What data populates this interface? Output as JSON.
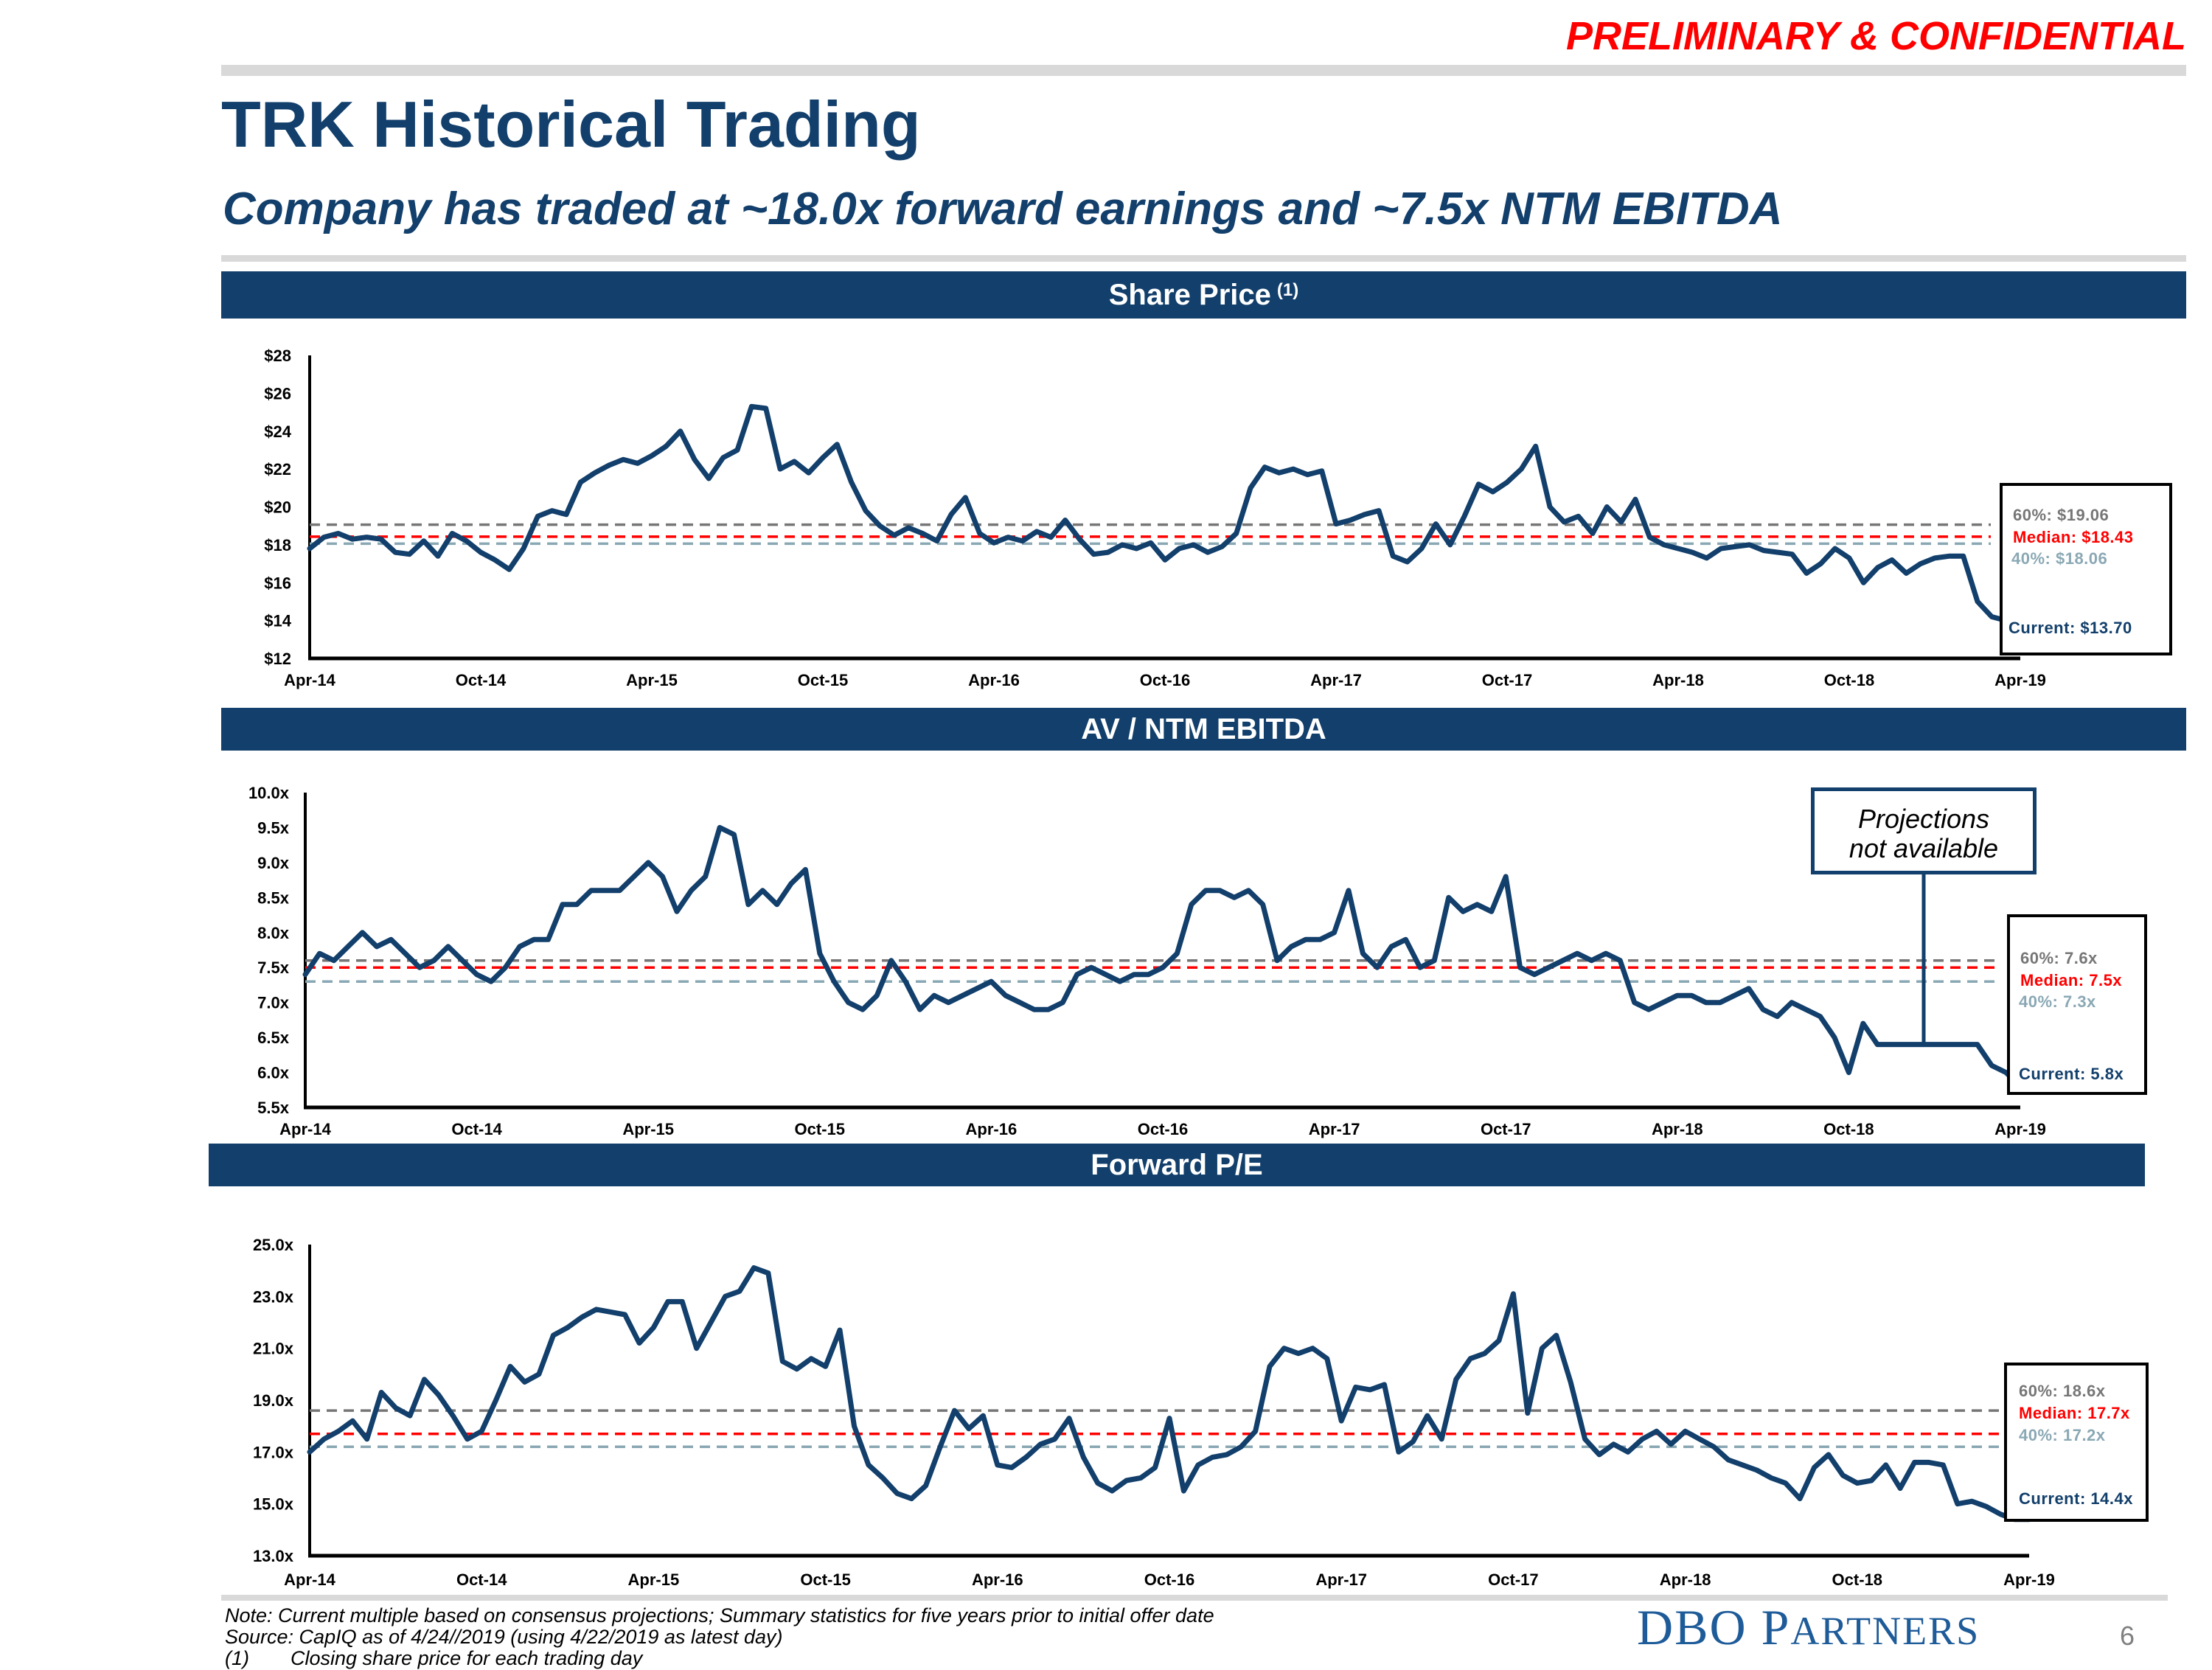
{
  "header": {
    "confidential": "PRELIMINARY & CONFIDENTIAL",
    "title": "TRK Historical Trading",
    "subtitle": "Company has traded at ~18.0x forward earnings and ~7.5x NTM EBITDA"
  },
  "sections": [
    {
      "label": "Share Price",
      "footnote_ref": "(1)"
    },
    {
      "label": "AV / NTM EBITDA"
    },
    {
      "label": "Forward P/E"
    }
  ],
  "colors": {
    "navy": "#123f6b",
    "red": "#ff0000",
    "grey60": "#767676",
    "grey40": "#8aa8b4"
  },
  "annotation": {
    "line1": "Projections",
    "line2": "not available"
  },
  "notes": {
    "note": "Note: Current multiple based on consensus projections; Summary statistics for five years prior to initial offer date",
    "source": "Source: CapIQ as of 4/24//2019 (using 4/22/2019 as latest day)",
    "footnote_num": "(1)",
    "footnote_text": "Closing share price for each trading day"
  },
  "footer": {
    "logo_main": "DBO",
    "logo_p": "P",
    "logo_rest": "ARTNERS",
    "page": "6"
  },
  "chart_data": [
    {
      "type": "line",
      "title": "Share Price (1)",
      "x_ticks": [
        "Apr-14",
        "Oct-14",
        "Apr-15",
        "Oct-15",
        "Apr-16",
        "Oct-16",
        "Apr-17",
        "Oct-17",
        "Apr-18",
        "Oct-18",
        "Apr-19"
      ],
      "y_ticks": [
        "$12",
        "$14",
        "$16",
        "$18",
        "$20",
        "$22",
        "$24",
        "$26",
        "$28"
      ],
      "ylim": [
        12,
        28
      ],
      "x_unit": "months since Apr-14",
      "xlim": [
        0,
        60
      ],
      "series": [
        {
          "name": "Share Price",
          "x": [
            0,
            0.5,
            1,
            1.5,
            2,
            2.5,
            3,
            3.5,
            4,
            4.5,
            5,
            5.5,
            6,
            6.5,
            7,
            7.5,
            8,
            8.5,
            9,
            9.5,
            10,
            10.5,
            11,
            11.5,
            12,
            12.5,
            13,
            13.5,
            14,
            14.5,
            15,
            15.5,
            16,
            16.5,
            17,
            17.5,
            18,
            18.5,
            19,
            19.5,
            20,
            20.5,
            21,
            21.5,
            22,
            22.5,
            23,
            23.5,
            24,
            24.5,
            25,
            25.5,
            26,
            26.5,
            27,
            27.5,
            28,
            28.5,
            29,
            29.5,
            30,
            30.5,
            31,
            31.5,
            32,
            32.5,
            33,
            33.5,
            34,
            34.5,
            35,
            35.5,
            36,
            36.5,
            37,
            37.5,
            38,
            38.5,
            39,
            39.5,
            40,
            40.5,
            41,
            41.5,
            42,
            42.5,
            43,
            43.5,
            44,
            44.5,
            45,
            45.5,
            46,
            46.5,
            47,
            47.5,
            48,
            48.5,
            49,
            49.5,
            50,
            50.5,
            51,
            51.5,
            52,
            52.5,
            53,
            53.5,
            54,
            54.5,
            55,
            55.5,
            56,
            56.5,
            57,
            57.5,
            58,
            58.5,
            59,
            59.5,
            60
          ],
          "values": [
            17.8,
            18.4,
            18.6,
            18.3,
            18.4,
            18.3,
            17.6,
            17.5,
            18.2,
            17.4,
            18.6,
            18.2,
            17.6,
            17.2,
            16.7,
            17.8,
            19.5,
            19.8,
            19.6,
            21.3,
            21.8,
            22.2,
            22.5,
            22.3,
            22.7,
            23.2,
            24.0,
            22.5,
            21.5,
            22.6,
            23.0,
            25.3,
            25.2,
            22.0,
            22.4,
            21.8,
            22.6,
            23.3,
            21.3,
            19.8,
            19.0,
            18.5,
            18.9,
            18.6,
            18.2,
            19.6,
            20.5,
            18.6,
            18.1,
            18.4,
            18.2,
            18.7,
            18.4,
            19.3,
            18.3,
            17.5,
            17.6,
            18.0,
            17.8,
            18.1,
            17.2,
            17.8,
            18.0,
            17.6,
            17.9,
            18.6,
            21.0,
            22.1,
            21.8,
            22.0,
            21.7,
            21.9,
            19.1,
            19.3,
            19.6,
            19.8,
            17.4,
            17.1,
            17.8,
            19.1,
            18.0,
            19.5,
            21.2,
            20.8,
            21.3,
            22.0,
            23.2,
            20.0,
            19.2,
            19.5,
            18.6,
            20.0,
            19.2,
            20.4,
            18.4,
            18.0,
            17.8,
            17.6,
            17.3,
            17.8,
            17.9,
            18.0,
            17.7,
            17.6,
            17.5,
            16.5,
            17.0,
            17.8,
            17.3,
            16.0,
            16.8,
            17.2,
            16.5,
            17.0,
            17.3,
            17.4,
            17.4,
            15.0,
            14.2,
            14.0,
            13.7
          ]
        }
      ],
      "reference_lines": [
        {
          "label": "60%",
          "value": 19.06,
          "text": "60%: $19.06"
        },
        {
          "label": "Median",
          "value": 18.43,
          "text": "Median: $18.43"
        },
        {
          "label": "40%",
          "value": 18.06,
          "text": "40%: $18.06"
        }
      ],
      "current": {
        "value": 13.7,
        "text": "Current: $13.70"
      }
    },
    {
      "type": "line",
      "title": "AV / NTM EBITDA",
      "x_ticks": [
        "Apr-14",
        "Oct-14",
        "Apr-15",
        "Oct-15",
        "Apr-16",
        "Oct-16",
        "Apr-17",
        "Oct-17",
        "Apr-18",
        "Oct-18",
        "Apr-19"
      ],
      "y_ticks": [
        "5.5x",
        "6.0x",
        "6.5x",
        "7.0x",
        "7.5x",
        "8.0x",
        "8.5x",
        "9.0x",
        "9.5x",
        "10.0x"
      ],
      "ylim": [
        5.5,
        10.0
      ],
      "x_unit": "months since Apr-14",
      "xlim": [
        0,
        60
      ],
      "series": [
        {
          "name": "AV / NTM EBITDA",
          "x": [
            0,
            0.5,
            1,
            1.5,
            2,
            2.5,
            3,
            3.5,
            4,
            4.5,
            5,
            5.5,
            6,
            6.5,
            7,
            7.5,
            8,
            8.5,
            9,
            9.5,
            10,
            10.5,
            11,
            11.5,
            12,
            12.5,
            13,
            13.5,
            14,
            14.5,
            15,
            15.5,
            16,
            16.5,
            17,
            17.5,
            18,
            18.5,
            19,
            19.5,
            20,
            20.5,
            21,
            21.5,
            22,
            22.5,
            23,
            23.5,
            24,
            24.5,
            25,
            25.5,
            26,
            26.5,
            27,
            27.5,
            28,
            28.5,
            29,
            29.5,
            30,
            30.5,
            31,
            31.5,
            32,
            32.5,
            33,
            33.5,
            34,
            34.5,
            35,
            35.5,
            36,
            36.5,
            37,
            37.5,
            38,
            38.5,
            39,
            39.5,
            40,
            40.5,
            41,
            41.5,
            42,
            42.5,
            43,
            43.5,
            44,
            44.5,
            45,
            45.5,
            46,
            46.5,
            47,
            47.5,
            48,
            48.5,
            49,
            49.5,
            50,
            50.5,
            51,
            51.5,
            52,
            52.5,
            53,
            53.5,
            54,
            54.5,
            55,
            55.5,
            56,
            56.5,
            57,
            57.5,
            58,
            58.5,
            59,
            59.5,
            60
          ],
          "values": [
            7.4,
            7.7,
            7.6,
            7.8,
            8.0,
            7.8,
            7.9,
            7.7,
            7.5,
            7.6,
            7.8,
            7.6,
            7.4,
            7.3,
            7.5,
            7.8,
            7.9,
            7.9,
            8.4,
            8.4,
            8.6,
            8.6,
            8.6,
            8.8,
            9.0,
            8.8,
            8.3,
            8.6,
            8.8,
            9.5,
            9.4,
            8.4,
            8.6,
            8.4,
            8.7,
            8.9,
            7.7,
            7.3,
            7.0,
            6.9,
            7.1,
            7.6,
            7.3,
            6.9,
            7.1,
            7.0,
            7.1,
            7.2,
            7.3,
            7.1,
            7.0,
            6.9,
            6.9,
            7.0,
            7.4,
            7.5,
            7.4,
            7.3,
            7.4,
            7.4,
            7.5,
            7.7,
            8.4,
            8.6,
            8.6,
            8.5,
            8.6,
            8.4,
            7.6,
            7.8,
            7.9,
            7.9,
            8.0,
            8.6,
            7.7,
            7.5,
            7.8,
            7.9,
            7.5,
            7.6,
            8.5,
            8.3,
            8.4,
            8.3,
            8.8,
            7.5,
            7.4,
            7.5,
            7.6,
            7.7,
            7.6,
            7.7,
            7.6,
            7.0,
            6.9,
            7.0,
            7.1,
            7.1,
            7.0,
            7.0,
            7.1,
            7.2,
            6.9,
            6.8,
            7.0,
            6.9,
            6.8,
            6.5,
            6.0,
            6.7,
            6.4,
            6.4,
            6.4,
            6.4,
            6.4,
            6.4,
            6.4,
            6.4,
            6.1,
            6.0,
            5.8
          ]
        }
      ],
      "reference_lines": [
        {
          "label": "60%",
          "value": 7.6,
          "text": "60%: 7.6x"
        },
        {
          "label": "Median",
          "value": 7.5,
          "text": "Median: 7.5x"
        },
        {
          "label": "40%",
          "value": 7.3,
          "text": "40%: 7.3x"
        }
      ],
      "current": {
        "value": 5.8,
        "text": "Current: 5.8x"
      }
    },
    {
      "type": "line",
      "title": "Forward P/E",
      "x_ticks": [
        "Apr-14",
        "Oct-14",
        "Apr-15",
        "Oct-15",
        "Apr-16",
        "Oct-16",
        "Apr-17",
        "Oct-17",
        "Apr-18",
        "Oct-18",
        "Apr-19"
      ],
      "y_ticks": [
        "13.0x",
        "15.0x",
        "17.0x",
        "19.0x",
        "21.0x",
        "23.0x",
        "25.0x"
      ],
      "ylim": [
        13.0,
        25.0
      ],
      "x_unit": "months since Apr-14",
      "xlim": [
        0,
        60
      ],
      "series": [
        {
          "name": "Forward P/E",
          "x": [
            0,
            0.5,
            1,
            1.5,
            2,
            2.5,
            3,
            3.5,
            4,
            4.5,
            5,
            5.5,
            6,
            6.5,
            7,
            7.5,
            8,
            8.5,
            9,
            9.5,
            10,
            10.5,
            11,
            11.5,
            12,
            12.5,
            13,
            13.5,
            14,
            14.5,
            15,
            15.5,
            16,
            16.5,
            17,
            17.5,
            18,
            18.5,
            19,
            19.5,
            20,
            20.5,
            21,
            21.5,
            22,
            22.5,
            23,
            23.5,
            24,
            24.5,
            25,
            25.5,
            26,
            26.5,
            27,
            27.5,
            28,
            28.5,
            29,
            29.5,
            30,
            30.5,
            31,
            31.5,
            32,
            32.5,
            33,
            33.5,
            34,
            34.5,
            35,
            35.5,
            36,
            36.5,
            37,
            37.5,
            38,
            38.5,
            39,
            39.5,
            40,
            40.5,
            41,
            41.5,
            42,
            42.5,
            43,
            43.5,
            44,
            44.5,
            45,
            45.5,
            46,
            46.5,
            47,
            47.5,
            48,
            48.5,
            49,
            49.5,
            50,
            50.5,
            51,
            51.5,
            52,
            52.5,
            53,
            53.5,
            54,
            54.5,
            55,
            55.5,
            56,
            56.5,
            57,
            57.5,
            58,
            58.5,
            59,
            59.5,
            60
          ],
          "values": [
            17.0,
            17.5,
            17.8,
            18.2,
            17.5,
            19.3,
            18.7,
            18.4,
            19.8,
            19.2,
            18.4,
            17.5,
            17.8,
            19.0,
            20.3,
            19.7,
            20.0,
            21.5,
            21.8,
            22.2,
            22.5,
            22.4,
            22.3,
            21.2,
            21.8,
            22.8,
            22.8,
            21.0,
            22.0,
            23.0,
            23.2,
            24.1,
            23.9,
            20.5,
            20.2,
            20.6,
            20.3,
            21.7,
            18.0,
            16.5,
            16.0,
            15.4,
            15.2,
            15.7,
            17.2,
            18.6,
            17.9,
            18.4,
            16.5,
            16.4,
            16.8,
            17.3,
            17.5,
            18.3,
            16.8,
            15.8,
            15.5,
            15.9,
            16.0,
            16.4,
            18.3,
            15.5,
            16.5,
            16.8,
            16.9,
            17.2,
            17.8,
            20.3,
            21.0,
            20.8,
            21.0,
            20.6,
            18.2,
            19.5,
            19.4,
            19.6,
            17.0,
            17.4,
            18.4,
            17.5,
            19.8,
            20.6,
            20.8,
            21.3,
            23.1,
            18.5,
            21.0,
            21.5,
            19.7,
            17.5,
            16.9,
            17.3,
            17.0,
            17.5,
            17.8,
            17.3,
            17.8,
            17.5,
            17.2,
            16.7,
            16.5,
            16.3,
            16.0,
            15.8,
            15.2,
            16.4,
            16.9,
            16.1,
            15.8,
            15.9,
            16.5,
            15.6,
            16.6,
            16.6,
            16.5,
            15.0,
            15.1,
            14.9,
            14.6,
            14.4,
            14.4
          ]
        }
      ],
      "reference_lines": [
        {
          "label": "60%",
          "value": 18.6,
          "text": "60%: 18.6x"
        },
        {
          "label": "Median",
          "value": 17.7,
          "text": "Median: 17.7x"
        },
        {
          "label": "40%",
          "value": 17.2,
          "text": "40%: 17.2x"
        }
      ],
      "current": {
        "value": 14.4,
        "text": "Current: 14.4x"
      }
    }
  ]
}
